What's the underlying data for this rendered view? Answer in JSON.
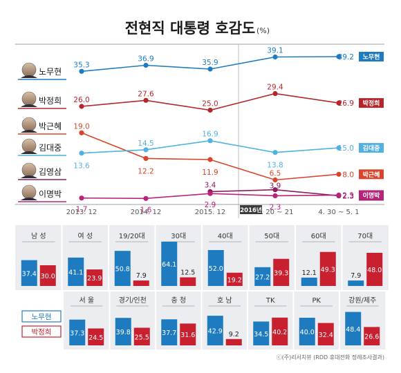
{
  "title": "전현직 대통령 호감도",
  "unit": "(%)",
  "source": "ⓒ(주)리서치뷰 (RDD 휴대전화 정례조사결과)",
  "colors": {
    "roh": "#1f7bc0",
    "park_jh": "#b5262c",
    "park_gh": "#d9442a",
    "kim_dj": "#4fb1df",
    "kim_ys": "#8c1c5f",
    "lee": "#b8237a",
    "bar_blue": "#1f7bc0",
    "bar_red": "#c8202f",
    "panel_bg": "#ecedf0"
  },
  "chart_data": [
    {
      "type": "line",
      "x": [
        "2013. 12",
        "2014. 12",
        "2015. 12",
        "4. 20 ~ 21",
        "4. 30 ~ 5. 1"
      ],
      "x_marker": "2016년",
      "series": [
        {
          "name": "노무현",
          "key": "roh",
          "values": [
            35.3,
            36.9,
            35.9,
            39.1,
            39.2
          ]
        },
        {
          "name": "박정희",
          "key": "park_jh",
          "values": [
            26.0,
            27.6,
            25.0,
            29.4,
            26.9
          ]
        },
        {
          "name": "박근혜",
          "key": "park_gh",
          "values": [
            19.0,
            12.2,
            11.9,
            6.5,
            8.0
          ]
        },
        {
          "name": "김대중",
          "key": "kim_dj",
          "values": [
            13.6,
            14.5,
            16.9,
            13.8,
            15.0
          ]
        },
        {
          "name": "김영삼",
          "key": "kim_ys",
          "values": [
            null,
            null,
            3.4,
            3.9,
            2.3
          ]
        },
        {
          "name": "이명박",
          "key": "lee",
          "values": [
            1.7,
            1.6,
            2.9,
            2.3,
            2.5
          ]
        }
      ]
    },
    {
      "type": "bar",
      "categories": [
        "남 성",
        "여 성",
        "19/20대",
        "30대",
        "40대",
        "50대",
        "60대",
        "70대"
      ],
      "series": [
        {
          "name": "노무현",
          "values": [
            37.4,
            41.1,
            50.8,
            64.1,
            52.0,
            27.2,
            12.1,
            7.9
          ]
        },
        {
          "name": "박정희",
          "values": [
            30.0,
            23.9,
            7.9,
            12.5,
            19.2,
            39.3,
            49.3,
            48.0
          ]
        }
      ]
    },
    {
      "type": "bar",
      "categories": [
        "서 울",
        "경기/인천",
        "충 청",
        "호 남",
        "TK",
        "PK",
        "강원/제주"
      ],
      "series": [
        {
          "name": "노무현",
          "values": [
            37.3,
            39.8,
            37.7,
            42.9,
            34.5,
            40.0,
            48.4
          ]
        },
        {
          "name": "박정희",
          "values": [
            24.5,
            25.5,
            31.6,
            9.2,
            40.2,
            32.4,
            26.6
          ]
        }
      ]
    }
  ]
}
